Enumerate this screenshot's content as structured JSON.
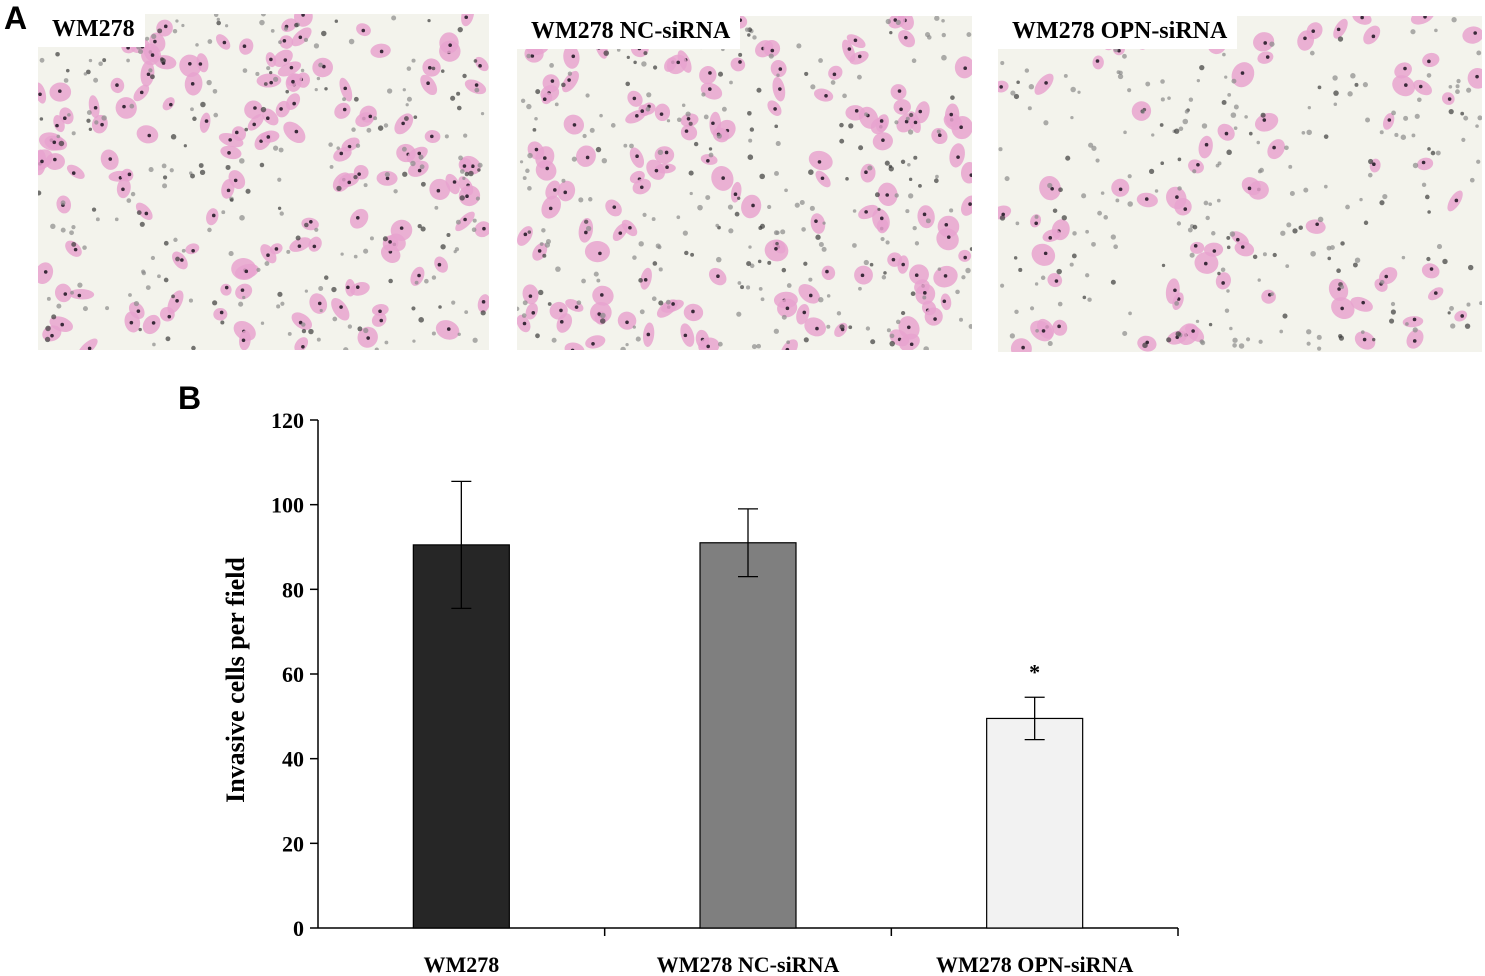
{
  "panels": {
    "a_label": "A",
    "b_label": "B"
  },
  "micrographs": [
    {
      "label": "WM278",
      "density": 1.0
    },
    {
      "label": "WM278 NC-siRNA",
      "density": 1.0
    },
    {
      "label": "WM278 OPN-siRNA",
      "density": 0.55
    }
  ],
  "colors": {
    "cell": "#e8a3cf",
    "nucleus": "#3a2a3a",
    "background": "#f3f3ec"
  },
  "chart_data": {
    "type": "bar",
    "categories": [
      "WM278",
      "WM278 NC-siRNA",
      "WM278 OPN-siRNA"
    ],
    "values": [
      90.5,
      91,
      49.5
    ],
    "errors": [
      15,
      8,
      5
    ],
    "colors": [
      "#262626",
      "#7f7f7f",
      "#f2f2f2"
    ],
    "annotations": [
      "",
      "",
      "*"
    ],
    "ylabel": "Invasive cells per field",
    "ylim": [
      0,
      120
    ],
    "yticks": [
      0,
      20,
      40,
      60,
      80,
      100,
      120
    ],
    "grid": false
  }
}
